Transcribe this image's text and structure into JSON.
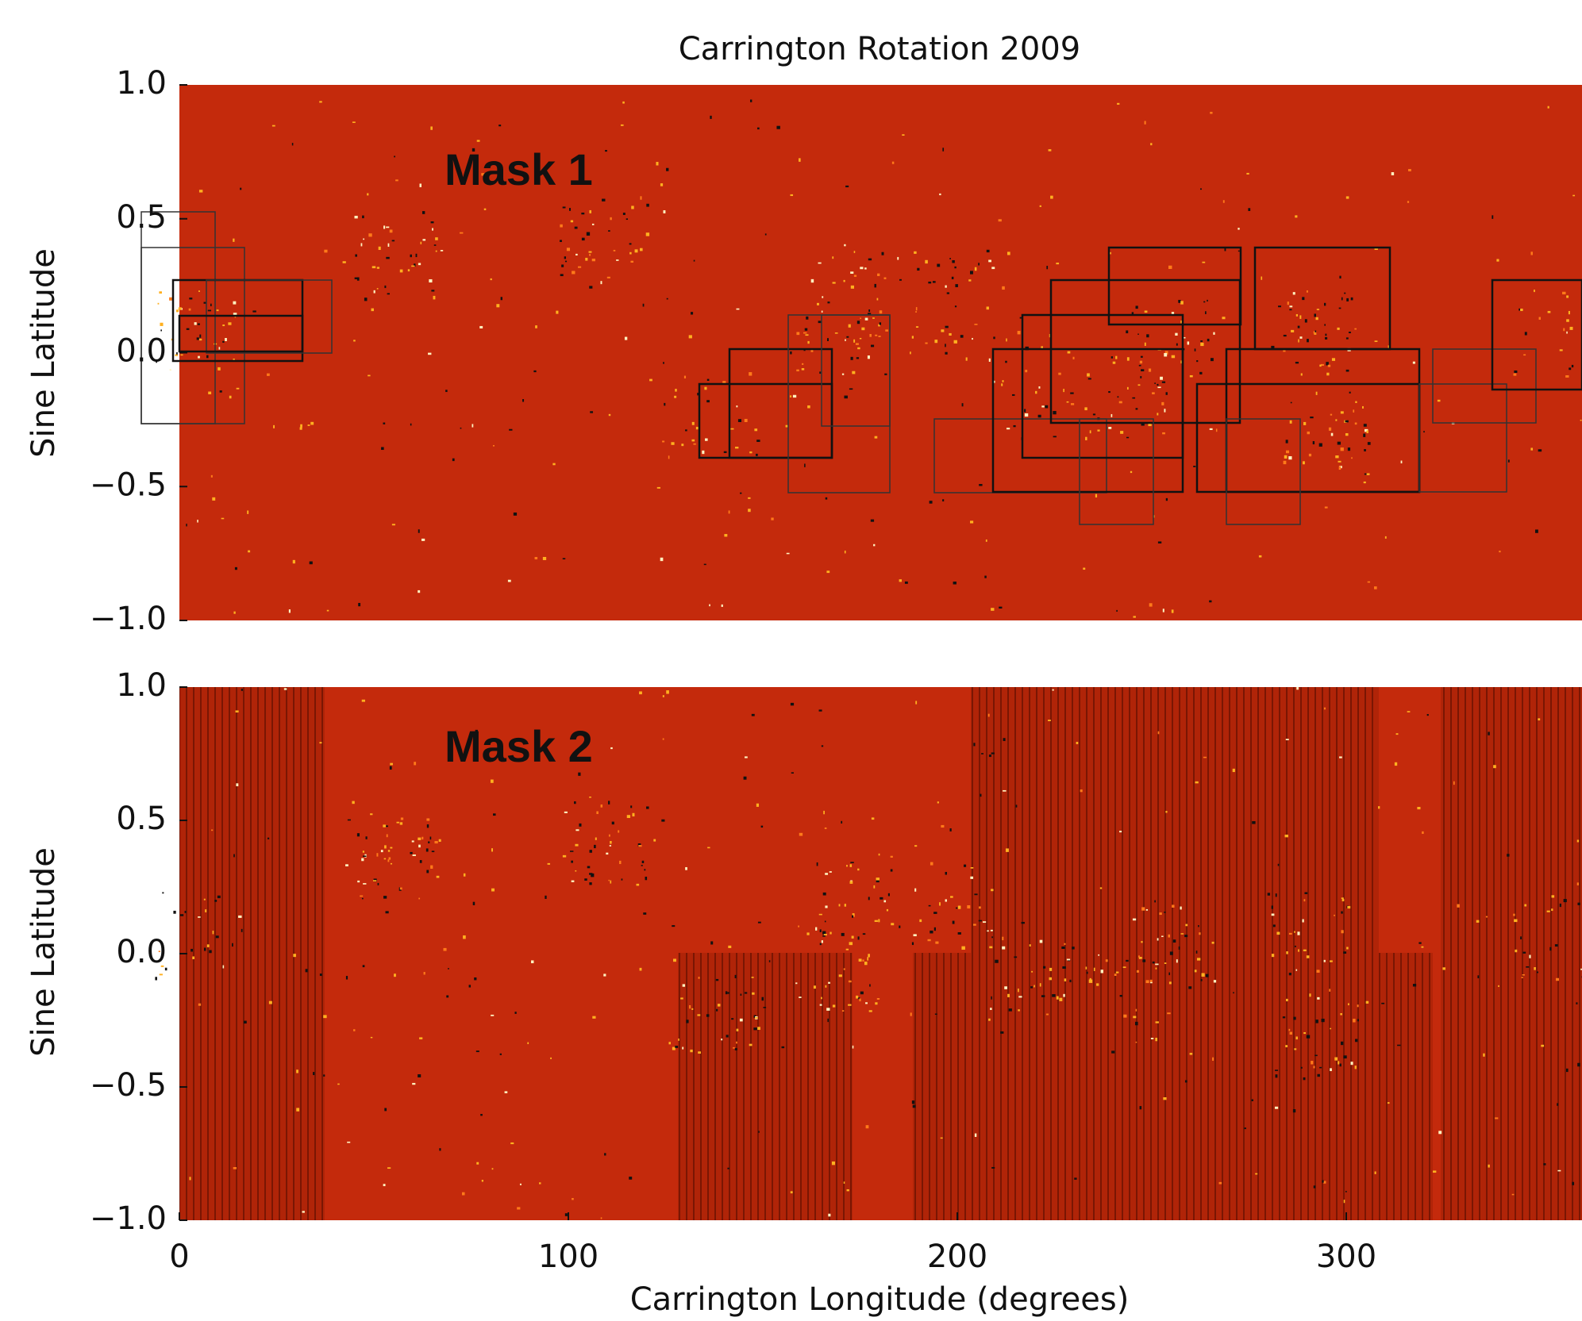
{
  "chart_data": [
    {
      "type": "image",
      "title": "Carrington Rotation 2009",
      "annotation": "Mask 1",
      "y_label": "Sine Latitude",
      "xlim": [
        0,
        360
      ],
      "ylim": [
        -1,
        1
      ],
      "yticks": [
        {
          "value": 1,
          "label": "1.0"
        },
        {
          "value": 0.5,
          "label": "0.5"
        },
        {
          "value": 0,
          "label": "0.0"
        },
        {
          "value": -0.5,
          "label": "−0.5"
        },
        {
          "value": -1,
          "label": "−1.0"
        }
      ],
      "color": "#c42a0c"
    },
    {
      "type": "image",
      "annotation": "Mask 2",
      "y_label": "Sine Latitude",
      "x_label": "Carrington Longitude (degrees)",
      "xlim": [
        0,
        360
      ],
      "ylim": [
        -1,
        1
      ],
      "xticks": [
        0,
        100,
        200,
        300
      ],
      "yticks": [
        {
          "value": 1,
          "label": "1.0"
        },
        {
          "value": 0.5,
          "label": "0.5"
        },
        {
          "value": 0,
          "label": "0.0"
        },
        {
          "value": -0.5,
          "label": "−0.5"
        },
        {
          "value": -1,
          "label": "−1.0"
        }
      ],
      "color": "#c42a0c"
    }
  ]
}
